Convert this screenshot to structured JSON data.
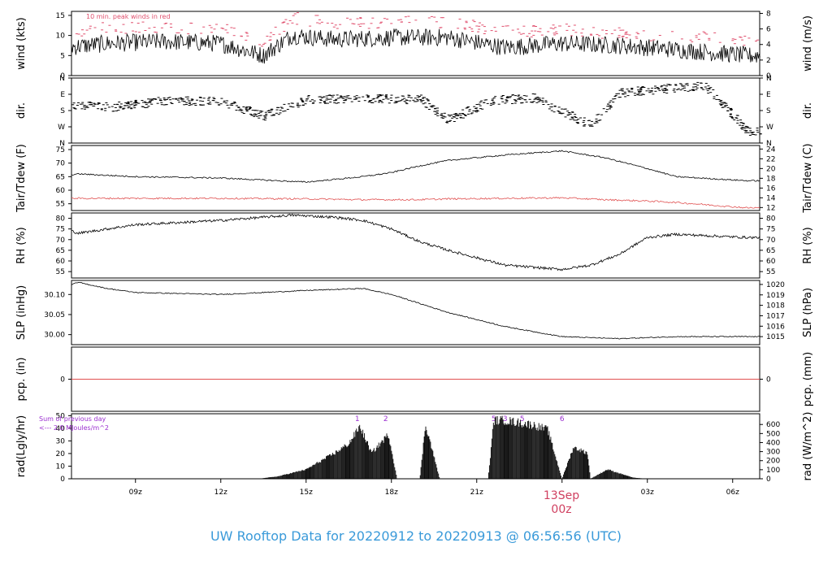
{
  "figure": {
    "title": "UW Rooftop Data for 20220912  to  20220913 @ 06:56:56  (UTC)",
    "date_label": "13Sep",
    "date_sub": "00z"
  },
  "colors": {
    "line": "#000000",
    "peak": "#e0506e",
    "dew": "#e05050",
    "annot": "#9b30d0",
    "title": "#3a9ad9",
    "date": "#d04060"
  },
  "chart_data": [
    {
      "type": "line",
      "panel": "wind",
      "ylabel_left": "wind (kts)",
      "ylabel_right": "wind (m/s)",
      "yticks_left": [
        0,
        5,
        10,
        15
      ],
      "yticks_right": [
        0,
        2,
        4,
        6,
        8
      ],
      "ylim": [
        0,
        16
      ],
      "annotation": "10 min. peak winds in red",
      "x": [
        6.5,
        8,
        10,
        12,
        13.5,
        14.5,
        16,
        18,
        20,
        22,
        24,
        26,
        28,
        30.5
      ],
      "series": [
        {
          "role": "wind",
          "values": [
            7,
            8,
            8.5,
            8,
            5,
            10,
            9,
            9.5,
            9.5,
            7,
            8,
            7.5,
            6.5,
            5
          ]
        },
        {
          "role": "peak",
          "values": [
            10.5,
            12,
            12,
            12,
            8.5,
            14.5,
            13,
            13.5,
            13.5,
            11,
            11.5,
            10.5,
            10,
            9
          ]
        }
      ]
    },
    {
      "type": "scatter",
      "panel": "dir",
      "ylabel_left": "dir.",
      "ylabel_right": "dir.",
      "yticks_left": [
        "N",
        "W",
        "S",
        "E",
        "N"
      ],
      "yticks_right": [
        "N",
        "W",
        "S",
        "E",
        "N"
      ],
      "x": [
        6.5,
        8,
        10,
        12,
        13.5,
        15,
        17,
        19,
        20,
        21.5,
        23,
        25,
        26,
        27.5,
        29,
        30.5
      ],
      "values": [
        220,
        200,
        235,
        230,
        150,
        245,
        245,
        245,
        130,
        240,
        250,
        100,
        280,
        300,
        320,
        70
      ]
    },
    {
      "type": "line",
      "panel": "temp",
      "ylabel_left": "Tair/Tdew (F)",
      "ylabel_right": "Tair/Tdew (C)",
      "yticks_left": [
        55,
        60,
        65,
        70,
        75
      ],
      "yticks_right": [
        12,
        14,
        16,
        18,
        20,
        22,
        24
      ],
      "ylim": [
        52.5,
        76.5
      ],
      "x": [
        6.5,
        7,
        9,
        12,
        15,
        17,
        18,
        19,
        20,
        22,
        24,
        25.5,
        27,
        28,
        30.5
      ],
      "series": [
        {
          "role": "tair",
          "values": [
            65.5,
            66,
            65,
            64.5,
            63,
            65,
            66.5,
            69,
            71,
            73,
            74.5,
            72,
            68,
            65,
            63.5
          ]
        },
        {
          "role": "tdew",
          "values": [
            57,
            57,
            57,
            57,
            56.8,
            56.5,
            56.5,
            56.5,
            56.8,
            57,
            57.2,
            56.5,
            56,
            55.5,
            53.5
          ]
        }
      ]
    },
    {
      "type": "line",
      "panel": "rh",
      "ylabel_left": "RH (%)",
      "ylabel_right": "RH (%)",
      "yticks_left": [
        55,
        60,
        65,
        70,
        75,
        80
      ],
      "yticks_right": [
        55,
        60,
        65,
        70,
        75,
        80
      ],
      "ylim": [
        52,
        82.5
      ],
      "x": [
        6.5,
        7,
        9,
        12,
        14.5,
        16,
        17,
        18,
        19,
        20,
        22,
        24,
        25,
        26,
        27,
        28,
        30.5
      ],
      "values": [
        75,
        73,
        77,
        79,
        81.5,
        80.5,
        79,
        75,
        69,
        65,
        58,
        56,
        58,
        63,
        71,
        72.5,
        71
      ]
    },
    {
      "type": "line",
      "panel": "slp",
      "ylabel_left": "SLP (inHg)",
      "ylabel_right": "SLP (hPa)",
      "yticks_left": [
        30.0,
        30.05,
        30.1
      ],
      "yticks_left_labels": [
        "30.00",
        "30.05",
        "30.10"
      ],
      "yticks_right": [
        1015,
        1016,
        1017,
        1018,
        1019,
        1020
      ],
      "ylim": [
        29.975,
        30.135
      ],
      "x": [
        6.5,
        7,
        8,
        9,
        12,
        15,
        17,
        18,
        20,
        22,
        24,
        26,
        28,
        30.5
      ],
      "values": [
        30.12,
        30.13,
        30.115,
        30.105,
        30.1,
        30.11,
        30.115,
        30.1,
        30.055,
        30.02,
        29.995,
        29.99,
        29.995,
        29.995
      ]
    },
    {
      "type": "line",
      "panel": "pcp",
      "ylabel_left": "pcp. (in)",
      "ylabel_right": "pcp. (mm)",
      "yticks_left": [
        0
      ],
      "yticks_right": [
        0
      ],
      "ylim": [
        -1,
        1
      ],
      "x": [
        6.5,
        30.5
      ],
      "values": [
        0,
        0
      ]
    },
    {
      "type": "area",
      "panel": "rad",
      "ylabel_left": "rad(Lgly/hr)",
      "ylabel_right": "rad (W/m^2)",
      "yticks_left": [
        0,
        10,
        20,
        30,
        40,
        50
      ],
      "yticks_right": [
        0,
        100,
        200,
        300,
        400,
        500,
        600
      ],
      "ylim": [
        0,
        51.5
      ],
      "annotation_lines": [
        "Sum of previous day",
        "<--- 2.0 MJoules/m^2"
      ],
      "markers": [
        {
          "x": 16.8,
          "label": "1"
        },
        {
          "x": 17.8,
          "label": "2"
        },
        {
          "x": 21.6,
          "label": "5"
        },
        {
          "x": 22.0,
          "label": "3"
        },
        {
          "x": 22.6,
          "label": "5"
        },
        {
          "x": 24.0,
          "label": "6"
        }
      ],
      "x": [
        13.3,
        14,
        15,
        16,
        16.5,
        16.9,
        17.3,
        17.9,
        18.2,
        19.0,
        19.2,
        19.7,
        21.4,
        21.6,
        22.0,
        23.0,
        23.5,
        24.0,
        24.4,
        24.9,
        25.0,
        25.6,
        26.5,
        27.0
      ],
      "values": [
        0,
        2,
        8,
        22,
        30,
        45,
        22,
        38,
        0,
        0,
        47,
        0,
        0,
        50,
        50,
        46,
        42,
        0,
        27,
        22,
        0,
        8,
        1,
        0
      ]
    }
  ],
  "xaxis": {
    "ticks": [
      9,
      12,
      15,
      18,
      21,
      24,
      27,
      30
    ],
    "labels": [
      "09z",
      "12z",
      "15z",
      "18z",
      "21z",
      "",
      "03z",
      "06z"
    ],
    "xlim": [
      6.75,
      30.95
    ]
  }
}
